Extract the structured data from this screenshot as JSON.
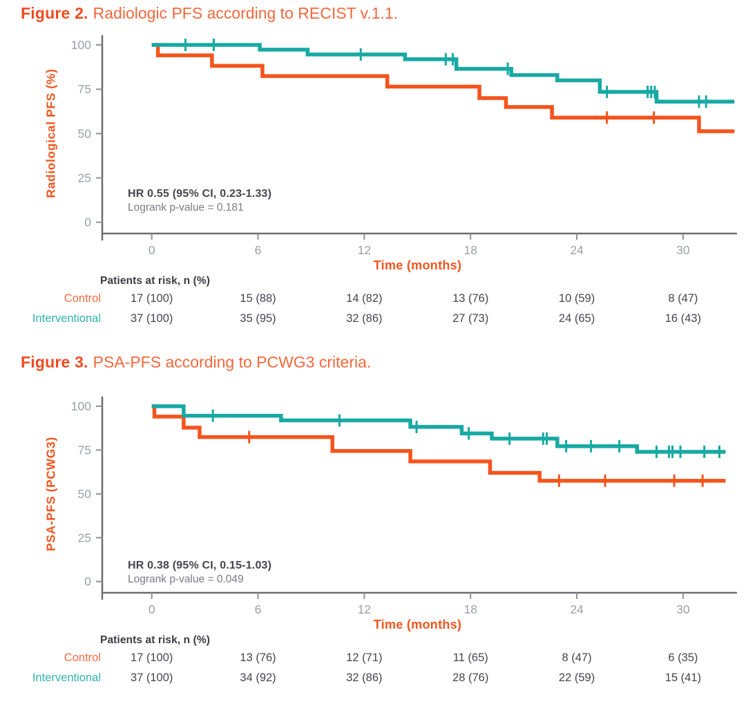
{
  "colors": {
    "control_orange": "#f4541d",
    "interventional_teal": "#17a9a3",
    "title_bold_orange": "#f04b20",
    "title_orange": "#f4683c",
    "row_label_orange": "#f46a40",
    "row_label_teal": "#2fb3ac",
    "axis_gray": "#6b6b70",
    "tick_label_gray": "#9aa0a6",
    "text_dark": "#45454d",
    "text_gray": "#7b7b82",
    "risk_value_dark": "#44444c"
  },
  "figures": [
    {
      "title_label": "Figure 2.",
      "title_text": "Radiologic PFS according to RECIST v.1.1.",
      "y_axis_label": "Radiological PFS (%)",
      "x_axis_label": "Time (months)",
      "annotation": {
        "line1": "HR 0.55 (95% CI, 0.23-1.33)",
        "line2": "Logrank p-value = 0.181"
      },
      "risk_table": {
        "header": "Patients at risk, n (%)",
        "rows": [
          {
            "label": "Control",
            "values": [
              "17 (100)",
              "15 (88)",
              "14 (82)",
              "13 (76)",
              "10 (59)",
              "8 (47)"
            ]
          },
          {
            "label": "Interventional",
            "values": [
              "37 (100)",
              "35 (95)",
              "32 (86)",
              "27 (73)",
              "24 (65)",
              "16 (43)"
            ]
          }
        ]
      },
      "chart_data": {
        "type": "line",
        "subtype": "kaplan-meier-step",
        "title": "Radiologic PFS according to RECIST v.1.1.",
        "xlabel": "Time (months)",
        "ylabel": "Radiological PFS (%)",
        "xlim": [
          0,
          33
        ],
        "ylim": [
          0,
          100
        ],
        "xticks": [
          0,
          6,
          12,
          18,
          24,
          30
        ],
        "yticks": [
          100,
          75,
          50,
          25,
          0
        ],
        "end_x": 32.9,
        "series": [
          {
            "name": "Control",
            "steps": [
              [
                0,
                100
              ],
              [
                0.35,
                94.1
              ],
              [
                3.4,
                88.2
              ],
              [
                6.25,
                82.4
              ],
              [
                13.3,
                76.5
              ],
              [
                18.5,
                70
              ],
              [
                20,
                65
              ],
              [
                22.6,
                59
              ],
              [
                30.9,
                51.3
              ]
            ],
            "censors": [
              [
                25.7,
                59
              ],
              [
                28.35,
                59
              ]
            ]
          },
          {
            "name": "Interventional",
            "steps": [
              [
                0,
                100
              ],
              [
                6.1,
                97.3
              ],
              [
                8.8,
                94.6
              ],
              [
                14.3,
                91.9
              ],
              [
                17.2,
                86.5
              ],
              [
                20.3,
                83
              ],
              [
                22.9,
                80
              ],
              [
                25.3,
                73.5
              ],
              [
                28.5,
                68
              ]
            ],
            "censors": [
              [
                1.9,
                100
              ],
              [
                3.5,
                100
              ],
              [
                11.8,
                94.6
              ],
              [
                16.6,
                91.9
              ],
              [
                17,
                91.9
              ],
              [
                20.1,
                86.5
              ],
              [
                25.7,
                73.5
              ],
              [
                28,
                73.5
              ],
              [
                28.2,
                73.5
              ],
              [
                28.4,
                73.5
              ],
              [
                30.9,
                68
              ],
              [
                31.3,
                68
              ]
            ]
          }
        ]
      }
    },
    {
      "title_label": "Figure 3.",
      "title_text": "PSA-PFS according to PCWG3 criteria.",
      "y_axis_label": "PSA-PFS (PCWG3)",
      "x_axis_label": "Time (months)",
      "annotation": {
        "line1": "HR 0.38 (95% CI, 0.15-1.03)",
        "line2": "Logrank p-value = 0.049"
      },
      "risk_table": {
        "header": "Patients at risk, n (%)",
        "rows": [
          {
            "label": "Control",
            "values": [
              "17 (100)",
              "13 (76)",
              "12 (71)",
              "11 (65)",
              "8 (47)",
              "6 (35)"
            ]
          },
          {
            "label": "Interventional",
            "values": [
              "37 (100)",
              "34 (92)",
              "32 (86)",
              "28 (76)",
              "22 (59)",
              "15 (41)"
            ]
          }
        ]
      },
      "chart_data": {
        "type": "line",
        "subtype": "kaplan-meier-step",
        "title": "PSA-PFS according to PCWG3 criteria.",
        "xlabel": "Time (months)",
        "ylabel": "PSA-PFS (PCWG3)",
        "xlim": [
          0,
          33
        ],
        "ylim": [
          0,
          100
        ],
        "xticks": [
          0,
          6,
          12,
          18,
          24,
          30
        ],
        "yticks": [
          100,
          75,
          50,
          25,
          0
        ],
        "end_x": 32.4,
        "series": [
          {
            "name": "Control",
            "steps": [
              [
                0,
                100
              ],
              [
                0.15,
                94.1
              ],
              [
                1.8,
                87.8
              ],
              [
                2.7,
                82.4
              ],
              [
                10.2,
                74.5
              ],
              [
                14.6,
                68.5
              ],
              [
                19.1,
                62
              ],
              [
                21.9,
                57.5
              ]
            ],
            "censors": [
              [
                5.5,
                82.4
              ],
              [
                23,
                57.5
              ],
              [
                25.6,
                57.5
              ],
              [
                29.5,
                57.5
              ],
              [
                31.1,
                57.5
              ]
            ]
          },
          {
            "name": "Interventional",
            "steps": [
              [
                0,
                100
              ],
              [
                1.8,
                94.6
              ],
              [
                7.3,
                91.9
              ],
              [
                14.6,
                88.2
              ],
              [
                17.5,
                84.5
              ],
              [
                19.2,
                81.5
              ],
              [
                22.9,
                77.2
              ],
              [
                27.4,
                74
              ]
            ],
            "censors": [
              [
                3.45,
                94.6
              ],
              [
                10.6,
                91.9
              ],
              [
                14.95,
                88.2
              ],
              [
                17.9,
                84.5
              ],
              [
                20.2,
                81.5
              ],
              [
                22.1,
                81.5
              ],
              [
                22.3,
                81.5
              ],
              [
                23.4,
                77.2
              ],
              [
                24.8,
                77.2
              ],
              [
                26.4,
                77.2
              ],
              [
                28.5,
                74
              ],
              [
                29.2,
                74
              ],
              [
                29.4,
                74
              ],
              [
                29.85,
                74
              ],
              [
                31.2,
                74
              ],
              [
                32.05,
                74
              ]
            ]
          }
        ]
      }
    }
  ]
}
